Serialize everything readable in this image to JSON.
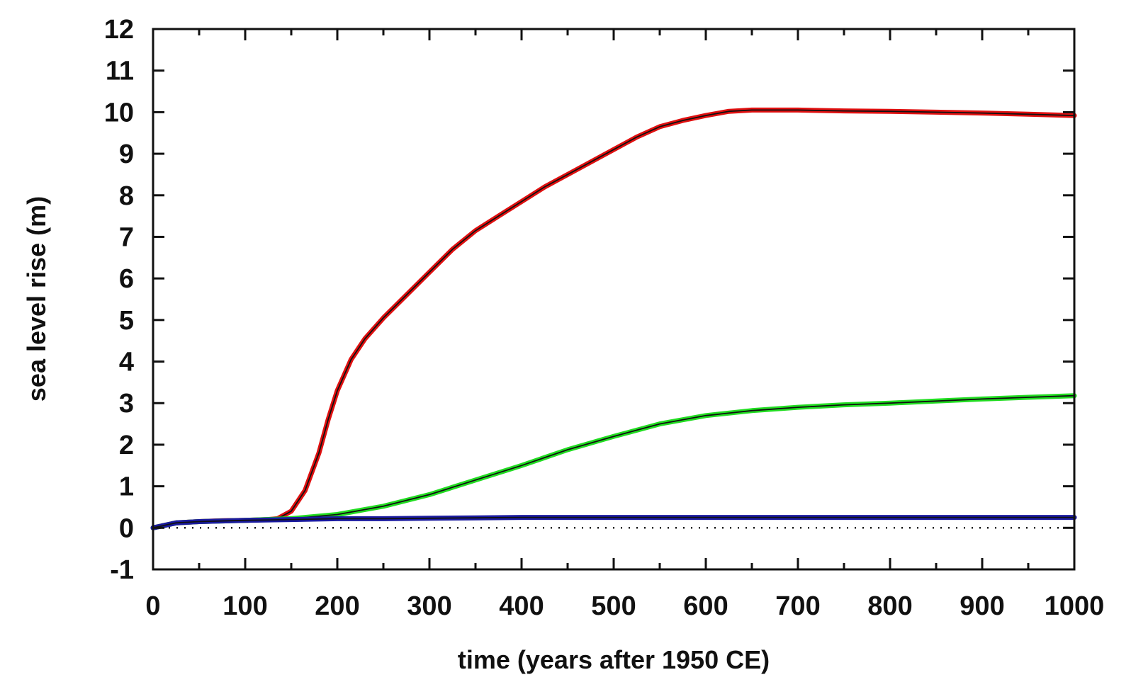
{
  "chart_data": {
    "type": "line",
    "xlabel": "time (years after 1950 CE)",
    "ylabel": "sea level rise (m)",
    "xlim": [
      0,
      1000
    ],
    "ylim": [
      -1,
      12
    ],
    "x_ticks": [
      "0",
      "100",
      "200",
      "300",
      "400",
      "500",
      "600",
      "700",
      "800",
      "900",
      "1000"
    ],
    "y_ticks": [
      "-1",
      "0",
      "1",
      "2",
      "3",
      "4",
      "5",
      "6",
      "7",
      "8",
      "9",
      "10",
      "11",
      "12"
    ],
    "grid": false,
    "zero_line": "dotted",
    "series": [
      {
        "color": "#e01010",
        "x": [
          0,
          25,
          50,
          75,
          100,
          125,
          135,
          150,
          165,
          180,
          190,
          200,
          215,
          230,
          250,
          275,
          300,
          325,
          350,
          375,
          400,
          425,
          450,
          475,
          500,
          525,
          550,
          575,
          600,
          625,
          650,
          700,
          750,
          800,
          850,
          900,
          950,
          1000
        ],
        "y": [
          0.0,
          0.12,
          0.15,
          0.17,
          0.18,
          0.2,
          0.22,
          0.4,
          0.9,
          1.8,
          2.6,
          3.3,
          4.05,
          4.55,
          5.05,
          5.6,
          6.15,
          6.7,
          7.15,
          7.5,
          7.85,
          8.2,
          8.5,
          8.8,
          9.1,
          9.4,
          9.65,
          9.8,
          9.92,
          10.02,
          10.05,
          10.05,
          10.03,
          10.02,
          10.0,
          9.98,
          9.95,
          9.92
        ]
      },
      {
        "color": "#22dd22",
        "x": [
          0,
          25,
          50,
          100,
          150,
          200,
          250,
          300,
          350,
          400,
          450,
          500,
          550,
          600,
          650,
          700,
          750,
          800,
          850,
          900,
          950,
          1000
        ],
        "y": [
          0.0,
          0.12,
          0.15,
          0.18,
          0.22,
          0.32,
          0.52,
          0.8,
          1.15,
          1.5,
          1.88,
          2.2,
          2.5,
          2.7,
          2.82,
          2.9,
          2.96,
          3.0,
          3.05,
          3.1,
          3.14,
          3.18
        ]
      },
      {
        "color": "#1a1aa0",
        "x": [
          0,
          25,
          50,
          100,
          150,
          200,
          250,
          300,
          350,
          400,
          500,
          600,
          700,
          800,
          900,
          1000
        ],
        "y": [
          0.0,
          0.12,
          0.15,
          0.18,
          0.2,
          0.22,
          0.22,
          0.23,
          0.24,
          0.25,
          0.25,
          0.25,
          0.25,
          0.25,
          0.25,
          0.25
        ]
      }
    ]
  }
}
